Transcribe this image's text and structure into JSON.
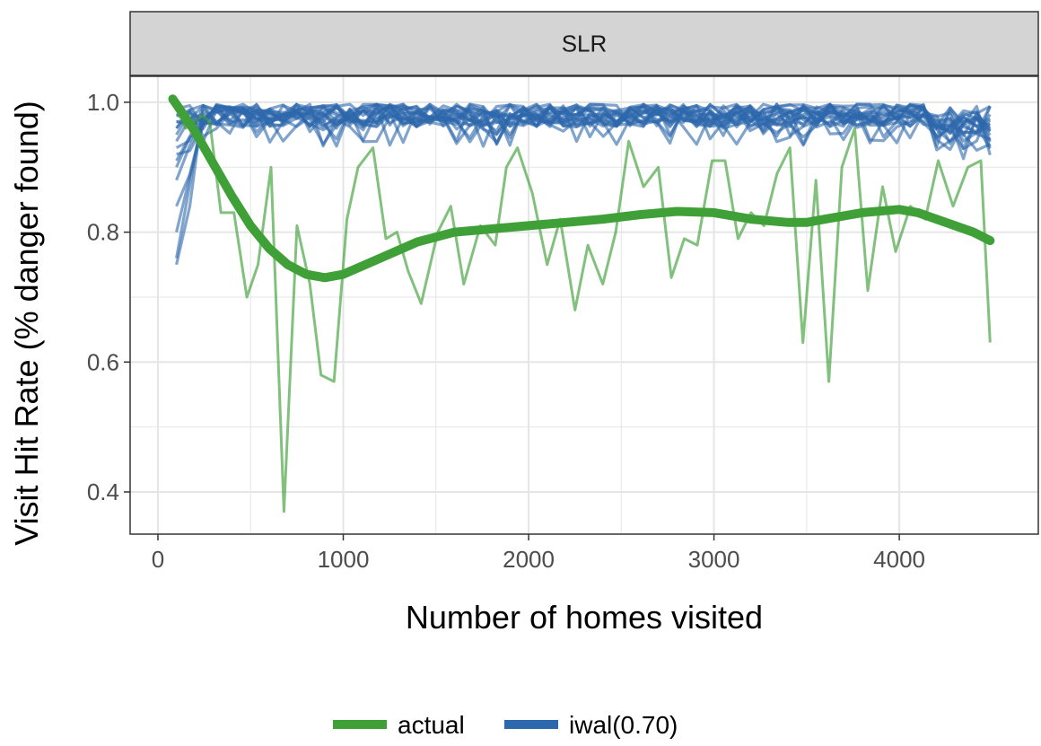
{
  "chart_data": {
    "type": "line",
    "facet_title": "SLR",
    "xlabel": "Number of homes visited",
    "ylabel": "Visit Hit Rate (% danger found)",
    "xlim": [
      -150,
      4750
    ],
    "ylim": [
      0.335,
      1.04
    ],
    "x_ticks": [
      0,
      1000,
      2000,
      3000,
      4000
    ],
    "x_tick_labels": [
      "0",
      "1000",
      "2000",
      "3000",
      "4000"
    ],
    "y_ticks": [
      0.4,
      0.6,
      0.8,
      1.0
    ],
    "y_tick_labels": [
      "0.4",
      "0.6",
      "0.8",
      "1.0"
    ],
    "grid": true,
    "legend_position": "bottom",
    "colors": {
      "actual": "#3fa038",
      "iwal": "#2d68ac",
      "strip_fill": "#d4d4d4",
      "grid": "#e5e5e5"
    },
    "legend": [
      {
        "label": "actual",
        "color": "#3fa038"
      },
      {
        "label": "iwal(0.70)",
        "color": "#2d68ac"
      }
    ],
    "series": [
      {
        "name": "actual",
        "style": "raw",
        "x": [
          100,
          150,
          200,
          240,
          280,
          340,
          410,
          480,
          540,
          610,
          680,
          750,
          820,
          880,
          950,
          1020,
          1080,
          1160,
          1230,
          1290,
          1350,
          1420,
          1510,
          1580,
          1650,
          1740,
          1820,
          1880,
          1940,
          2020,
          2100,
          2170,
          2250,
          2320,
          2400,
          2470,
          2540,
          2620,
          2700,
          2770,
          2840,
          2910,
          2990,
          3060,
          3130,
          3200,
          3270,
          3340,
          3410,
          3480,
          3550,
          3620,
          3690,
          3760,
          3830,
          3910,
          3980,
          4060,
          4140,
          4210,
          4290,
          4370,
          4440,
          4490
        ],
        "y": [
          0.99,
          0.96,
          0.97,
          0.98,
          0.97,
          0.83,
          0.83,
          0.7,
          0.75,
          0.9,
          0.37,
          0.81,
          0.72,
          0.58,
          0.57,
          0.82,
          0.9,
          0.93,
          0.79,
          0.8,
          0.74,
          0.69,
          0.8,
          0.84,
          0.72,
          0.81,
          0.78,
          0.9,
          0.93,
          0.86,
          0.75,
          0.82,
          0.68,
          0.78,
          0.72,
          0.8,
          0.94,
          0.87,
          0.9,
          0.73,
          0.79,
          0.78,
          0.91,
          0.91,
          0.79,
          0.83,
          0.81,
          0.89,
          0.93,
          0.63,
          0.88,
          0.57,
          0.9,
          0.96,
          0.71,
          0.87,
          0.77,
          0.84,
          0.82,
          0.91,
          0.84,
          0.9,
          0.91,
          0.63
        ]
      },
      {
        "name": "actual",
        "style": "smooth",
        "x": [
          80,
          200,
          300,
          400,
          500,
          600,
          700,
          800,
          900,
          1000,
          1200,
          1400,
          1600,
          1800,
          2000,
          2200,
          2400,
          2600,
          2800,
          3000,
          3200,
          3400,
          3500,
          3600,
          3800,
          4000,
          4100,
          4200,
          4300,
          4400,
          4490
        ],
        "y": [
          1.005,
          0.955,
          0.905,
          0.855,
          0.81,
          0.775,
          0.75,
          0.735,
          0.73,
          0.735,
          0.76,
          0.785,
          0.8,
          0.805,
          0.81,
          0.815,
          0.82,
          0.827,
          0.832,
          0.83,
          0.82,
          0.815,
          0.815,
          0.82,
          0.83,
          0.835,
          0.83,
          0.82,
          0.81,
          0.8,
          0.787
        ]
      },
      {
        "name": "iwal(0.70)",
        "style": "band",
        "x_start": 100,
        "x_end": 4490,
        "count": 20,
        "center": 0.98,
        "spread": 0.018,
        "start_values": [
          0.75,
          0.76,
          0.8,
          0.84,
          0.88,
          0.9,
          0.91,
          0.92,
          0.93,
          0.94,
          0.95,
          0.96,
          0.96,
          0.97,
          0.97,
          0.98,
          0.98,
          0.99,
          0.99,
          0.99
        ]
      }
    ]
  }
}
